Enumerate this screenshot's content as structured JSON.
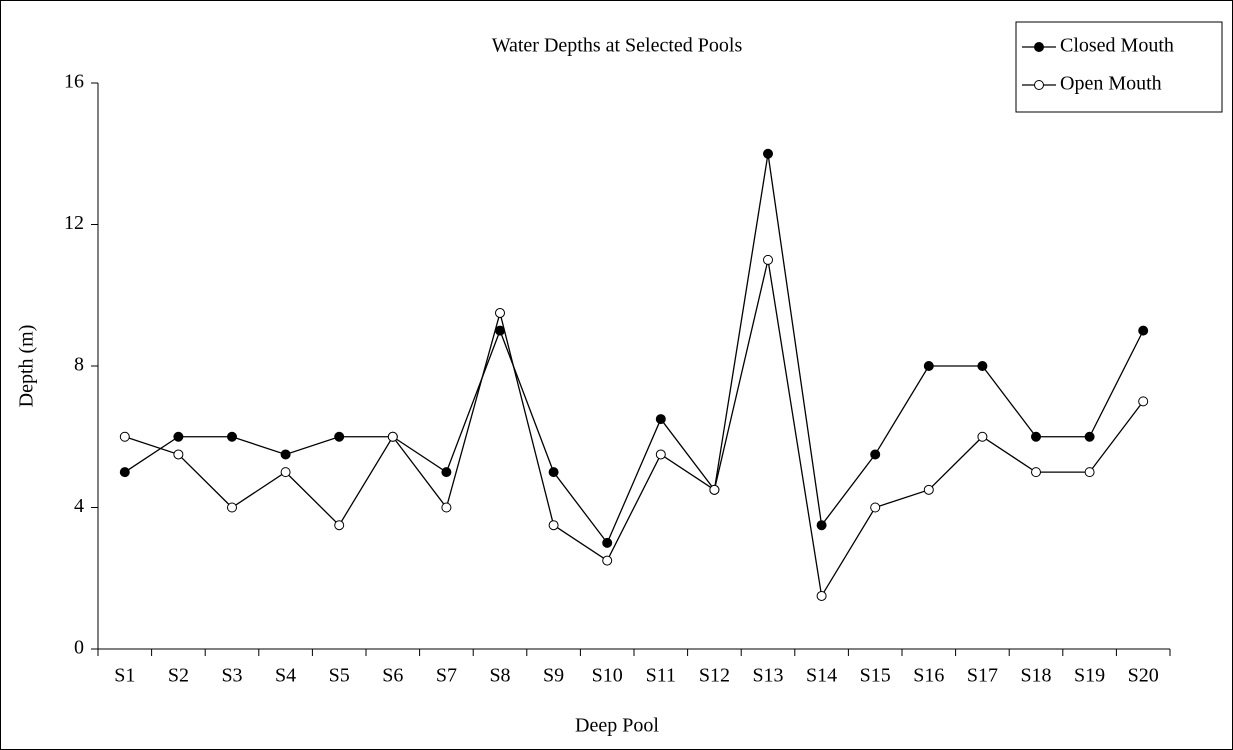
{
  "chart_data": {
    "type": "line",
    "title": "Water Depths at Selected Pools",
    "x_label": "Deep Pool",
    "y_label": "Depth (m)",
    "categories": [
      "S1",
      "S2",
      "S3",
      "S4",
      "S5",
      "S6",
      "S7",
      "S8",
      "S9",
      "S10",
      "S11",
      "S12",
      "S13",
      "S14",
      "S15",
      "S16",
      "S17",
      "S18",
      "S19",
      "S20"
    ],
    "series": [
      {
        "name": "Closed Mouth",
        "color": "#000000",
        "marker_fill": "#000000",
        "values": [
          5,
          6,
          6,
          5.5,
          6,
          6,
          5,
          9,
          5,
          3,
          6.5,
          4.5,
          14,
          3.5,
          5.5,
          8,
          8,
          6,
          6,
          9
        ]
      },
      {
        "name": "Open Mouth",
        "color": "#000000",
        "marker_fill": "#ffffff",
        "values": [
          6,
          5.5,
          4,
          5,
          3.5,
          6,
          4,
          9.5,
          3.5,
          2.5,
          5.5,
          4.5,
          11,
          1.5,
          4,
          4.5,
          6,
          5,
          5,
          7
        ]
      }
    ],
    "ylim": [
      0,
      16
    ],
    "yticks": [
      0,
      4,
      8,
      12,
      16
    ],
    "grid": false,
    "legend": "upper right"
  }
}
